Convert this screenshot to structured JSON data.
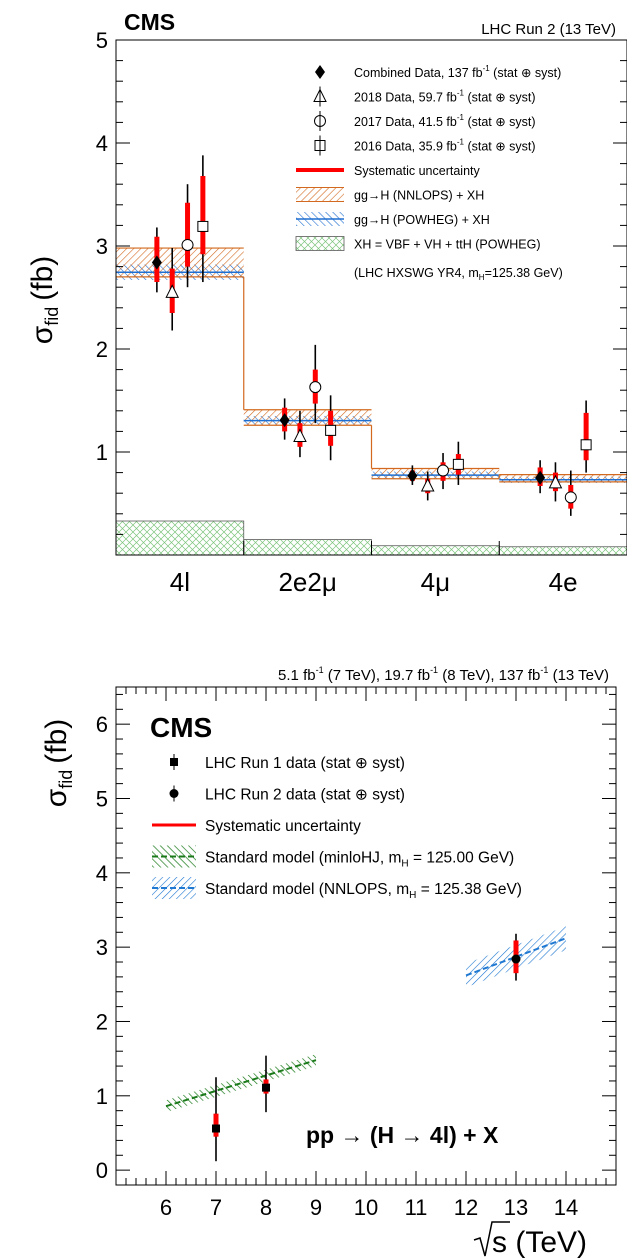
{
  "chart_data": [
    {
      "type": "scatter",
      "experiment": "CMS",
      "header": "LHC Run 2 (13 TeV)",
      "ylabel": "σ",
      "ylabel_sub": "fid",
      "ylabel_unit": "(fb)",
      "ylim": [
        0,
        5
      ],
      "yticks": [
        "1",
        "2",
        "3",
        "4",
        "5"
      ],
      "categories": [
        "4l",
        "2e2μ",
        "4μ",
        "4e"
      ],
      "legend_position": "top-right",
      "legend": [
        {
          "label": "Combined Data, 137 fb",
          "sup": "-1",
          "tail": " (stat ⊕ syst)",
          "icon": "diamond-marker"
        },
        {
          "label": "2018 Data, 59.7 fb",
          "sup": "-1",
          "tail": " (stat ⊕ syst)",
          "icon": "triangle-marker"
        },
        {
          "label": "2017 Data, 41.5 fb",
          "sup": "-1",
          "tail": " (stat ⊕ syst)",
          "icon": "circle-marker"
        },
        {
          "label": "2016 Data, 35.9 fb",
          "sup": "-1",
          "tail": " (stat ⊕ syst)",
          "icon": "square-marker"
        },
        {
          "label": "Systematic uncertainty",
          "sup": "",
          "tail": "",
          "icon": "red-line"
        },
        {
          "label": "gg→H (NNLOPS) + XH",
          "sup": "",
          "tail": "",
          "icon": "orange-hatch"
        },
        {
          "label": "gg→H (POWHEG) + XH",
          "sup": "",
          "tail": "",
          "icon": "blue-hatch"
        },
        {
          "label": "XH = VBF + VH + ttH (POWHEG)",
          "sup": "",
          "tail": "",
          "icon": "green-hatch"
        }
      ],
      "legend_note": {
        "text": "(LHC HXSWG YR4, m",
        "sub": "H",
        "tail": "=125.38 GeV)"
      },
      "colors": {
        "syst": "#ff0000",
        "nnlops": "#d2691e",
        "powheg": "#1f6fd1",
        "xh": "#7cc47c"
      },
      "bins": [
        {
          "nnlops": [
            2.7,
            2.98
          ],
          "powheg": [
            2.67,
            2.82
          ],
          "xh": 0.33
        },
        {
          "nnlops": [
            1.26,
            1.41
          ],
          "powheg": [
            1.26,
            1.35
          ],
          "xh": 0.15
        },
        {
          "nnlops": [
            0.74,
            0.84
          ],
          "powheg": [
            0.74,
            0.81
          ],
          "xh": 0.09
        },
        {
          "nnlops": [
            0.71,
            0.78
          ],
          "powheg": [
            0.7,
            0.76
          ],
          "xh": 0.08
        }
      ],
      "series": [
        {
          "name": "Combined",
          "marker": "diamond",
          "points": [
            {
              "bin": 0,
              "y": 2.84,
              "lo": 2.55,
              "hi": 3.18,
              "slo": 2.65,
              "shi": 3.09
            },
            {
              "bin": 1,
              "y": 1.31,
              "lo": 1.12,
              "hi": 1.52,
              "slo": 1.2,
              "shi": 1.43
            },
            {
              "bin": 2,
              "y": 0.77,
              "lo": 0.68,
              "hi": 0.87,
              "slo": 0.72,
              "shi": 0.82
            },
            {
              "bin": 3,
              "y": 0.75,
              "lo": 0.6,
              "hi": 0.92,
              "slo": 0.67,
              "shi": 0.85
            }
          ]
        },
        {
          "name": "2018",
          "marker": "triangle",
          "points": [
            {
              "bin": 0,
              "y": 2.55,
              "lo": 2.18,
              "hi": 2.98,
              "slo": 2.35,
              "shi": 2.78
            },
            {
              "bin": 1,
              "y": 1.15,
              "lo": 0.95,
              "hi": 1.4,
              "slo": 1.05,
              "shi": 1.28
            },
            {
              "bin": 2,
              "y": 0.67,
              "lo": 0.53,
              "hi": 0.81,
              "slo": 0.6,
              "shi": 0.74
            },
            {
              "bin": 3,
              "y": 0.7,
              "lo": 0.52,
              "hi": 0.9,
              "slo": 0.62,
              "shi": 0.8
            }
          ]
        },
        {
          "name": "2017",
          "marker": "circle",
          "points": [
            {
              "bin": 0,
              "y": 3.01,
              "lo": 2.6,
              "hi": 3.6,
              "slo": 2.8,
              "shi": 3.42
            },
            {
              "bin": 1,
              "y": 1.63,
              "lo": 1.28,
              "hi": 2.04,
              "slo": 1.47,
              "shi": 1.8
            },
            {
              "bin": 2,
              "y": 0.82,
              "lo": 0.64,
              "hi": 0.99,
              "slo": 0.72,
              "shi": 0.9
            },
            {
              "bin": 3,
              "y": 0.56,
              "lo": 0.38,
              "hi": 0.82,
              "slo": 0.45,
              "shi": 0.68
            }
          ]
        },
        {
          "name": "2016",
          "marker": "square",
          "points": [
            {
              "bin": 0,
              "y": 3.19,
              "lo": 2.65,
              "hi": 3.88,
              "slo": 2.92,
              "shi": 3.68
            },
            {
              "bin": 1,
              "y": 1.21,
              "lo": 0.92,
              "hi": 1.55,
              "slo": 1.06,
              "shi": 1.4
            },
            {
              "bin": 2,
              "y": 0.88,
              "lo": 0.68,
              "hi": 1.1,
              "slo": 0.78,
              "shi": 0.98
            },
            {
              "bin": 3,
              "y": 1.07,
              "lo": 0.8,
              "hi": 1.5,
              "slo": 0.92,
              "shi": 1.38
            }
          ]
        }
      ]
    },
    {
      "type": "scatter",
      "experiment": "CMS",
      "header_parts": [
        {
          "t": "5.1 fb",
          "sup": "-1",
          "tail": " (7 TeV), "
        },
        {
          "t": "19.7 fb",
          "sup": "-1",
          "tail": " (8 TeV), "
        },
        {
          "t": "137 fb",
          "sup": "-1",
          "tail": " (13 TeV)"
        }
      ],
      "ylabel": "σ",
      "ylabel_sub": "fid",
      "ylabel_unit": "(fb)",
      "xlabel": "s (TeV)",
      "xlim": [
        5,
        15
      ],
      "ylim": [
        -0.2,
        6.5
      ],
      "xticks": [
        "6",
        "7",
        "8",
        "9",
        "10",
        "11",
        "12",
        "13",
        "14"
      ],
      "yticks": [
        "0",
        "1",
        "2",
        "3",
        "4",
        "5",
        "6"
      ],
      "process": "pp  → (H  → 4l) + X",
      "legend_position": "top-left",
      "legend": [
        {
          "label": "LHC Run 1 data (stat ⊕ syst)",
          "icon": "square-marker"
        },
        {
          "label": "LHC Run 2 data (stat ⊕ syst)",
          "icon": "circle-marker"
        },
        {
          "label": "Systematic uncertainty",
          "icon": "red-line"
        },
        {
          "label": "Standard model (minloHJ, m",
          "sub": "H",
          "tail": " = 125.00 GeV)",
          "icon": "green-band"
        },
        {
          "label": "Standard model (NNLOPS, m",
          "sub": "H",
          "tail": " = 125.38 GeV)",
          "icon": "blue-band"
        }
      ],
      "colors": {
        "syst": "#ff0000",
        "minlo": "#1a7a1a",
        "nnlops": "#1f78d1"
      },
      "bands": [
        {
          "name": "minloHJ",
          "x": [
            6,
            9
          ],
          "center": [
            0.86,
            1.48
          ],
          "half": 0.08
        },
        {
          "name": "NNLOPS",
          "x": [
            12,
            14
          ],
          "center": [
            2.62,
            3.12
          ],
          "half": 0.16
        }
      ],
      "points": [
        {
          "run": 1,
          "x": 7,
          "y": 0.56,
          "lo": 0.12,
          "hi": 1.25,
          "slo": 0.45,
          "shi": 0.76
        },
        {
          "run": 1,
          "x": 8,
          "y": 1.11,
          "lo": 0.78,
          "hi": 1.54,
          "slo": 1.03,
          "shi": 1.22
        },
        {
          "run": 2,
          "x": 13,
          "y": 2.84,
          "lo": 2.55,
          "hi": 3.18,
          "slo": 2.65,
          "shi": 3.09
        }
      ]
    }
  ]
}
